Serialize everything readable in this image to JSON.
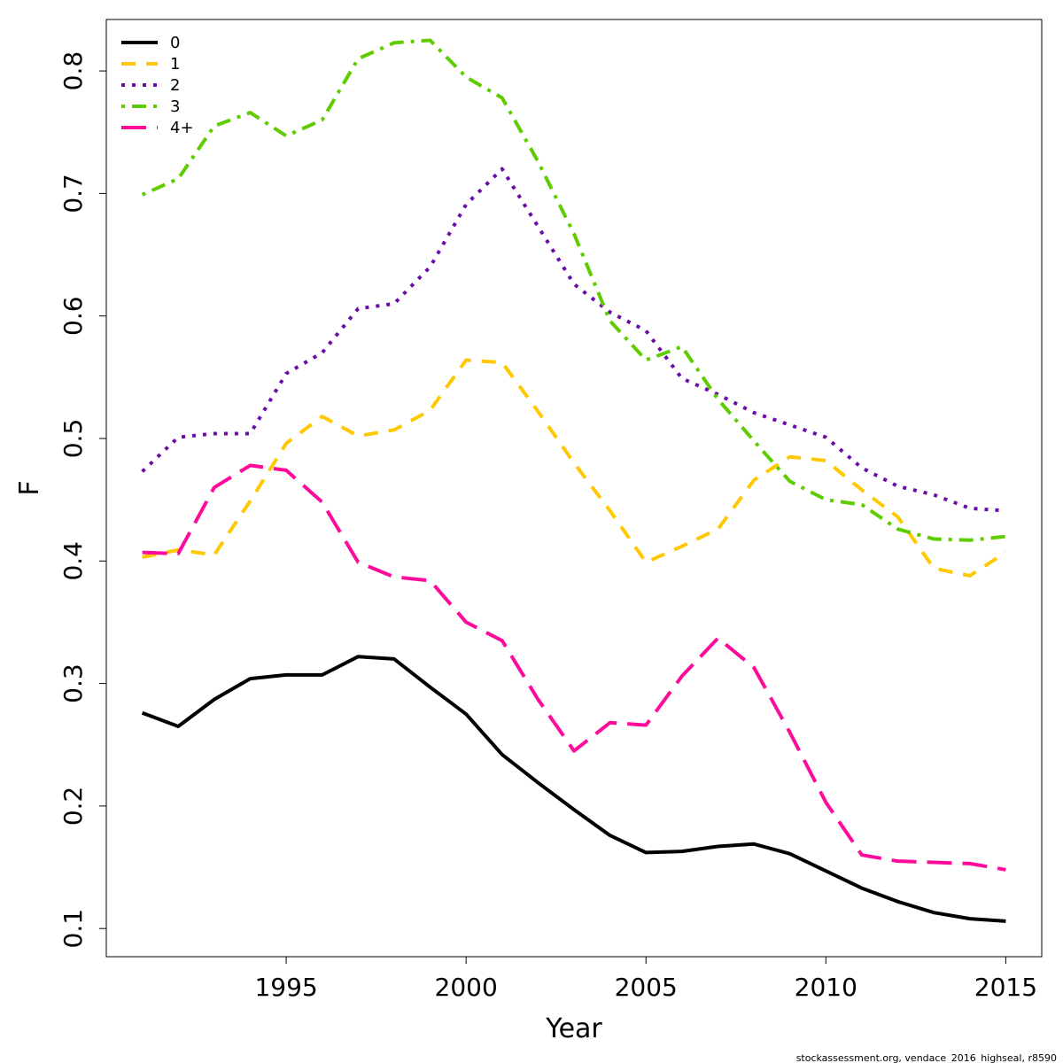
{
  "chart_data": {
    "type": "line",
    "xlabel": "Year",
    "ylabel": "F",
    "xlim": [
      1990.0,
      2016.0
    ],
    "ylim": [
      0.077,
      0.842
    ],
    "x_ticks": [
      1995,
      2000,
      2005,
      2010,
      2015
    ],
    "y_ticks": [
      0.1,
      0.2,
      0.3,
      0.4,
      0.5,
      0.6,
      0.7,
      0.8
    ],
    "x_tick_labels": [
      "1995",
      "2000",
      "2005",
      "2010",
      "2015"
    ],
    "y_tick_labels": [
      "0.1",
      "0.2",
      "0.3",
      "0.4",
      "0.5",
      "0.6",
      "0.7",
      "0.8"
    ],
    "legend_position": "top-left",
    "grid": false,
    "x": [
      1991,
      1992,
      1993,
      1994,
      1995,
      1996,
      1997,
      1998,
      1999,
      2000,
      2001,
      2002,
      2003,
      2004,
      2005,
      2006,
      2007,
      2008,
      2009,
      2010,
      2011,
      2012,
      2013,
      2014,
      2015
    ],
    "series": [
      {
        "name": "0",
        "color": "#000000",
        "dash": "solid",
        "values": [
          0.276,
          0.265,
          0.287,
          0.304,
          0.307,
          0.307,
          0.322,
          0.32,
          0.297,
          0.275,
          0.242,
          0.219,
          0.197,
          0.176,
          0.162,
          0.163,
          0.167,
          0.169,
          0.161,
          0.147,
          0.133,
          0.122,
          0.113,
          0.108,
          0.106
        ]
      },
      {
        "name": "1",
        "color": "#ffc800",
        "dash": "dashed",
        "values": [
          0.403,
          0.409,
          0.405,
          0.449,
          0.496,
          0.518,
          0.502,
          0.507,
          0.523,
          0.564,
          0.562,
          0.522,
          0.48,
          0.441,
          0.399,
          0.412,
          0.426,
          0.466,
          0.485,
          0.482,
          0.458,
          0.436,
          0.394,
          0.388,
          0.407
        ]
      },
      {
        "name": "2",
        "color": "#6a0ca8",
        "dash": "dotted",
        "values": [
          0.473,
          0.501,
          0.504,
          0.504,
          0.553,
          0.57,
          0.606,
          0.61,
          0.64,
          0.691,
          0.72,
          0.673,
          0.626,
          0.603,
          0.588,
          0.549,
          0.536,
          0.521,
          0.511,
          0.501,
          0.476,
          0.461,
          0.454,
          0.443,
          0.441
        ]
      },
      {
        "name": "3",
        "color": "#5fcc00",
        "dash": "dotdash",
        "values": [
          0.699,
          0.712,
          0.755,
          0.766,
          0.747,
          0.76,
          0.81,
          0.823,
          0.825,
          0.795,
          0.778,
          0.726,
          0.667,
          0.596,
          0.564,
          0.575,
          0.532,
          0.498,
          0.465,
          0.45,
          0.446,
          0.426,
          0.418,
          0.417,
          0.42
        ]
      },
      {
        "name": "4+",
        "color": "#ff0a9b",
        "dash": "longdash",
        "values": [
          0.407,
          0.406,
          0.46,
          0.478,
          0.474,
          0.448,
          0.399,
          0.387,
          0.384,
          0.35,
          0.335,
          0.287,
          0.245,
          0.268,
          0.266,
          0.306,
          0.337,
          0.313,
          0.26,
          0.203,
          0.16,
          0.155,
          0.154,
          0.153,
          0.148
        ]
      }
    ]
  },
  "footer": {
    "credit": "stockassessment.org, vendace_2016_highseal, r8590"
  }
}
